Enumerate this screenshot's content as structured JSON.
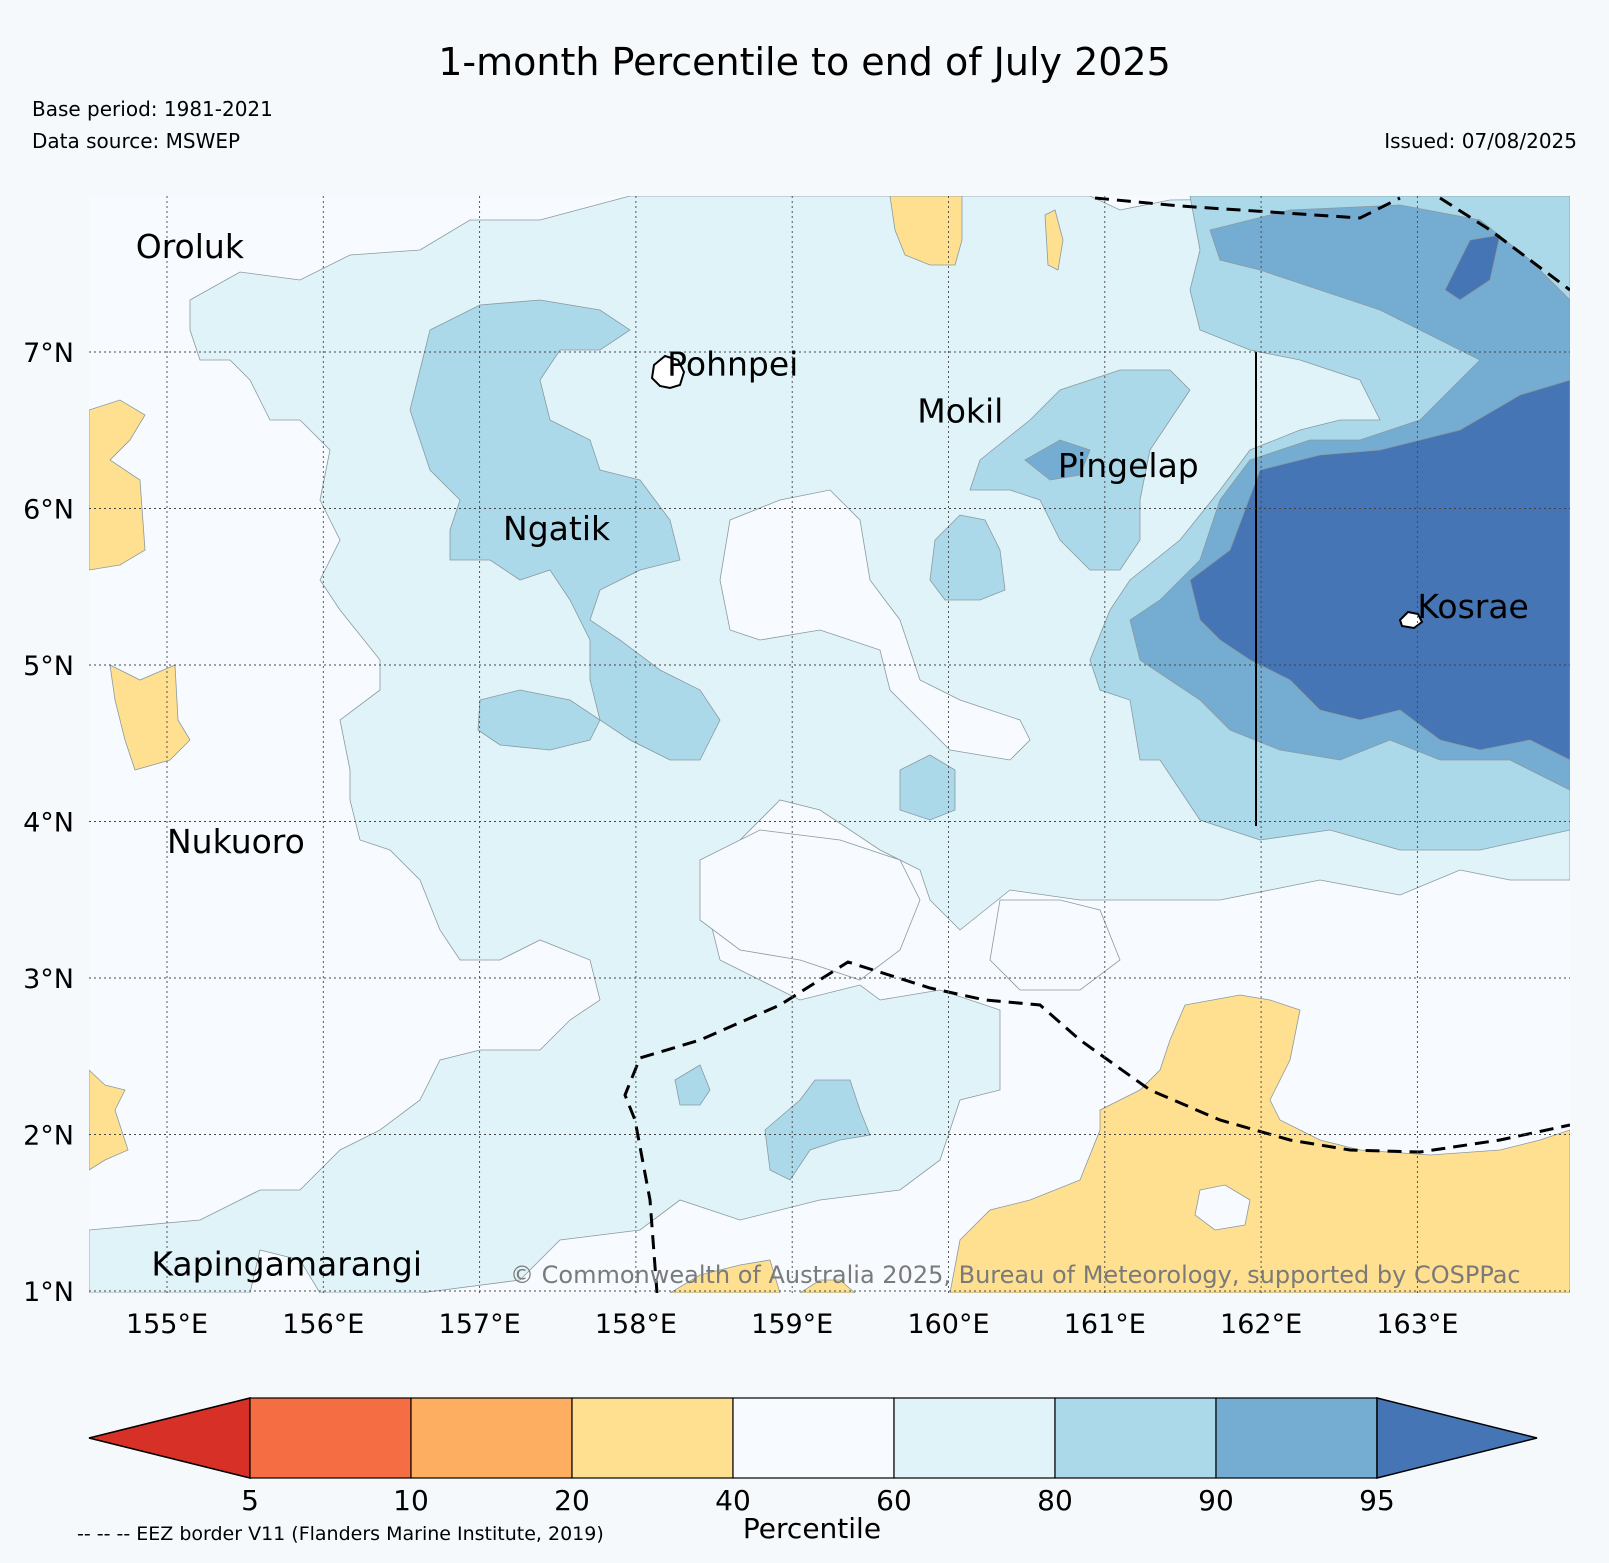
{
  "title": "1-month Percentile to end of July 2025",
  "base_period": "Base period: 1981-2021",
  "data_source": "Data source: MSWEP",
  "issued": "Issued: 07/08/2025",
  "lat_labels": [
    "7°N",
    "6°N",
    "5°N",
    "4°N",
    "3°N",
    "2°N",
    "1°N"
  ],
  "lon_labels": [
    "155°E",
    "156°E",
    "157°E",
    "158°E",
    "159°E",
    "160°E",
    "161°E",
    "162°E",
    "163°E"
  ],
  "places": [
    {
      "name": "Oroluk",
      "lon": 154.8,
      "lat": 7.6
    },
    {
      "name": "Pohnpei",
      "lon": 158.2,
      "lat": 6.85
    },
    {
      "name": "Mokil",
      "lon": 159.8,
      "lat": 6.55
    },
    {
      "name": "Pingelap",
      "lon": 160.7,
      "lat": 6.2
    },
    {
      "name": "Ngatik",
      "lon": 157.15,
      "lat": 5.8
    },
    {
      "name": "Kosrae",
      "lon": 163.0,
      "lat": 5.3
    },
    {
      "name": "Nukuoro",
      "lon": 155.0,
      "lat": 3.8
    },
    {
      "name": "Kapingamarangi",
      "lon": 154.9,
      "lat": 1.1
    }
  ],
  "copyright": "© Commonwealth of Australia 2025, Bureau of Meteorology, supported by COSPPac",
  "colorbar": {
    "title": "Percentile",
    "ticks": [
      "5",
      "10",
      "20",
      "40",
      "60",
      "80",
      "90",
      "95"
    ],
    "colors": [
      "#d73027",
      "#f46d43",
      "#fdae61",
      "#fee090",
      "#f7fbff",
      "#e0f3f8",
      "#abd9e9",
      "#74add1",
      "#4575b4"
    ]
  },
  "legend_note": "-- -- -- EEZ border V11 (Flanders Marine Institute, 2019)"
}
